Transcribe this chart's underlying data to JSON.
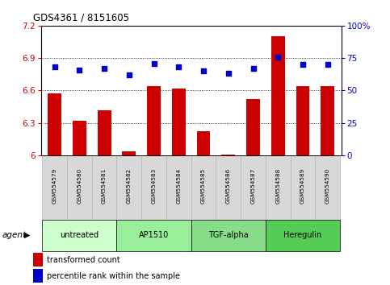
{
  "title": "GDS4361 / 8151605",
  "samples": [
    "GSM554579",
    "GSM554580",
    "GSM554581",
    "GSM554582",
    "GSM554583",
    "GSM554584",
    "GSM554585",
    "GSM554586",
    "GSM554587",
    "GSM554588",
    "GSM554589",
    "GSM554590"
  ],
  "bar_values": [
    6.57,
    6.32,
    6.42,
    6.04,
    6.64,
    6.62,
    6.22,
    6.01,
    6.52,
    7.1,
    6.64,
    6.64
  ],
  "dot_values": [
    68,
    66,
    67,
    62,
    71,
    68,
    65,
    63,
    67,
    76,
    70,
    70
  ],
  "bar_color": "#cc0000",
  "dot_color": "#0000cc",
  "ylim_left": [
    6.0,
    7.2
  ],
  "ylim_right": [
    0,
    100
  ],
  "yticks_left": [
    6.0,
    6.3,
    6.6,
    6.9,
    7.2
  ],
  "yticks_right": [
    0,
    25,
    50,
    75,
    100
  ],
  "ytick_labels_left": [
    "6",
    "6.3",
    "6.6",
    "6.9",
    "7.2"
  ],
  "ytick_labels_right": [
    "0",
    "25",
    "50",
    "75",
    "100%"
  ],
  "grid_values": [
    6.3,
    6.6,
    6.9
  ],
  "agent_groups": [
    {
      "label": "untreated",
      "start": 0,
      "end": 3,
      "color": "#ccffcc"
    },
    {
      "label": "AP1510",
      "start": 3,
      "end": 6,
      "color": "#99ee99"
    },
    {
      "label": "TGF-alpha",
      "start": 6,
      "end": 9,
      "color": "#88dd88"
    },
    {
      "label": "Heregulin",
      "start": 9,
      "end": 12,
      "color": "#55cc55"
    }
  ],
  "legend_bar_label": "transformed count",
  "legend_dot_label": "percentile rank within the sample",
  "agent_label": "agent",
  "bar_width": 0.55,
  "background_color": "#ffffff",
  "sample_box_color": "#d8d8d8"
}
